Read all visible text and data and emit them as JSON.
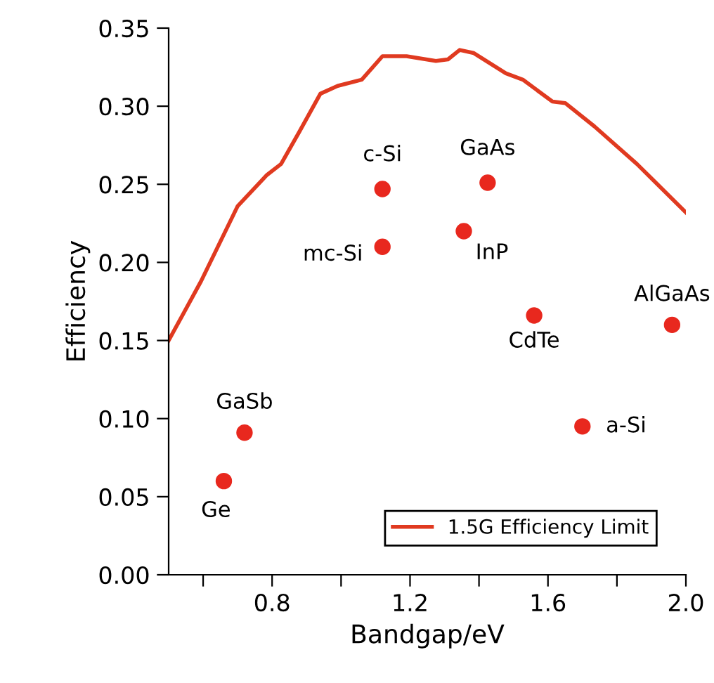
{
  "chart_data": {
    "type": "line",
    "xlabel": "Bandgap/eV",
    "ylabel": "Efficiency",
    "xlim": [
      0.5,
      2.0
    ],
    "ylim": [
      0.0,
      0.35
    ],
    "xticks": [
      {
        "value": 0.6,
        "label": null
      },
      0.8,
      {
        "value": 1.0,
        "label": null
      },
      1.2,
      {
        "value": 1.4,
        "label": null
      },
      1.6,
      {
        "value": 1.8,
        "label": null
      },
      {
        "value": 2.0,
        "label": "2.0"
      }
    ],
    "yticks": [
      {
        "value": 0,
        "label": "0.00"
      },
      {
        "value": 0.05,
        "label": "0.05"
      },
      {
        "value": 0.1,
        "label": "0.10"
      },
      {
        "value": 0.15,
        "label": "0.15"
      },
      {
        "value": 0.2,
        "label": "0.20"
      },
      {
        "value": 0.25,
        "label": "0.25"
      },
      {
        "value": 0.3,
        "label": "0.30"
      },
      {
        "value": 0.35,
        "label": "0.35"
      }
    ],
    "grid": false,
    "legend": "bottom right",
    "series": [
      {
        "name": "1.5G Efficiency Limit",
        "color": "#e03a20",
        "marker": "none",
        "line_style": "solid",
        "x": [
          0.5,
          0.594,
          0.7,
          0.785,
          0.826,
          0.88,
          0.94,
          0.99,
          1.06,
          1.12,
          1.19,
          1.275,
          1.31,
          1.344,
          1.385,
          1.478,
          1.527,
          1.613,
          1.65,
          1.735,
          1.858,
          2.0
        ],
        "values": [
          0.15,
          0.188,
          0.236,
          0.256,
          0.263,
          0.284,
          0.308,
          0.313,
          0.317,
          0.332,
          0.332,
          0.329,
          0.33,
          0.336,
          0.334,
          0.321,
          0.317,
          0.303,
          0.302,
          0.287,
          0.263,
          0.232
        ]
      },
      {
        "type": "scatter",
        "color": "#e8281e",
        "marker": "circle",
        "x": [
          1.12,
          1.425,
          1.12,
          1.356,
          1.56,
          1.96,
          1.7,
          0.72,
          0.66
        ],
        "values": [
          0.247,
          0.251,
          0.21,
          0.22,
          0.166,
          0.16,
          0.095,
          0.091,
          0.06
        ]
      }
    ],
    "annotations": [
      {
        "text": "c-Si",
        "x": 1.12,
        "y": 0.247
      },
      {
        "text": "GaAs",
        "x": 1.425,
        "y": 0.251
      },
      {
        "text": "mc-Si",
        "x": 1.12,
        "y": 0.21
      },
      {
        "text": "InP",
        "x": 1.356,
        "y": 0.22
      },
      {
        "text": "CdTe",
        "x": 1.56,
        "y": 0.166
      },
      {
        "text": "AlGaAs",
        "x": 1.96,
        "y": 0.16
      },
      {
        "text": "a-Si",
        "x": 1.7,
        "y": 0.095
      },
      {
        "text": "GaSb",
        "x": 0.72,
        "y": 0.091
      },
      {
        "text": "Ge",
        "x": 0.66,
        "y": 0.06
      }
    ]
  }
}
